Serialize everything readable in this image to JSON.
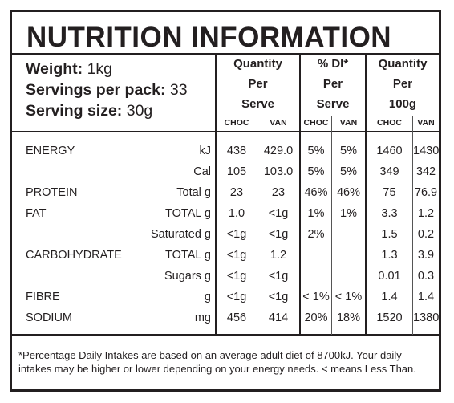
{
  "title": "NUTRITION INFORMATION",
  "summary": {
    "weight_label": "Weight:",
    "weight_value": "1kg",
    "servings_label": "Servings per pack:",
    "servings_value": "33",
    "serving_size_label": "Serving size:",
    "serving_size_value": "30g"
  },
  "columns": {
    "per_serve": [
      "Quantity",
      "Per",
      "Serve"
    ],
    "di_serve": [
      "% DI*",
      "Per",
      "Serve"
    ],
    "per_100g": [
      "Quantity",
      "Per",
      "100g"
    ],
    "sub": [
      "CHOC",
      "VAN",
      "CHOC",
      "VAN",
      "CHOC",
      "VAN"
    ]
  },
  "rows": [
    {
      "name": "ENERGY",
      "unit": "kJ",
      "values": [
        "438",
        "429.0",
        "5%",
        "5%",
        "1460",
        "1430"
      ]
    },
    {
      "name": "",
      "unit": "Cal",
      "values": [
        "105",
        "103.0",
        "5%",
        "5%",
        "349",
        "342"
      ]
    },
    {
      "name": "PROTEIN",
      "unit": "Total g",
      "values": [
        "23",
        "23",
        "46%",
        "46%",
        "75",
        "76.9"
      ]
    },
    {
      "name": "FAT",
      "unit": "TOTAL g",
      "values": [
        "1.0",
        "<1g",
        "1%",
        "1%",
        "3.3",
        "1.2"
      ]
    },
    {
      "name": "",
      "unit": "Saturated g",
      "values": [
        "<1g",
        "<1g",
        "2%",
        "",
        "1.5",
        "0.2"
      ]
    },
    {
      "name": "CARBOHYDRATE",
      "unit": "TOTAL g",
      "values": [
        "<1g",
        "1.2",
        "",
        "",
        "1.3",
        "3.9"
      ]
    },
    {
      "name": "",
      "unit": "Sugars g",
      "values": [
        "<1g",
        "<1g",
        "",
        "",
        "0.01",
        "0.3"
      ]
    },
    {
      "name": "FIBRE",
      "unit": "g",
      "values": [
        "<1g",
        "<1g",
        "< 1%",
        "< 1%",
        "1.4",
        "1.4"
      ]
    },
    {
      "name": "SODIUM",
      "unit": "mg",
      "values": [
        "456",
        "414",
        "20%",
        "18%",
        "1520",
        "1380"
      ]
    }
  ],
  "footnote": "*Percentage Daily Intakes are based on an average adult diet of 8700kJ. Your daily intakes may be higher or lower depending on your energy needs. < means Less Than."
}
